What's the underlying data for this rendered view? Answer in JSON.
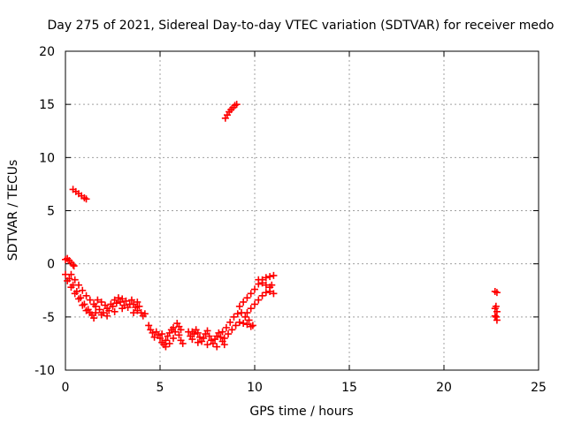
{
  "chart_data": {
    "type": "scatter",
    "title": "Day 275 of 2021, Sidereal Day-to-day VTEC variation (SDTVAR) for receiver medo",
    "xlabel": "GPS time / hours",
    "ylabel": "SDTVAR / TECUs",
    "xlim": [
      0,
      25
    ],
    "ylim": [
      -10,
      20
    ],
    "xticks": [
      "0",
      "5",
      "10",
      "15",
      "20",
      "25"
    ],
    "yticks": [
      "-10",
      "-5",
      "0",
      "5",
      "10",
      "15",
      "20"
    ],
    "grid": true,
    "marker": "+",
    "color": "#ff0000",
    "series": [
      {
        "name": "cluster_high_8h",
        "points": [
          [
            8.45,
            13.7
          ],
          [
            8.55,
            14.0
          ],
          [
            8.65,
            14.3
          ],
          [
            8.75,
            14.5
          ],
          [
            8.85,
            14.7
          ],
          [
            8.95,
            14.9
          ],
          [
            9.05,
            15.0
          ]
        ]
      },
      {
        "name": "cluster_early_7",
        "points": [
          [
            0.4,
            7.0
          ],
          [
            0.55,
            6.8
          ],
          [
            0.7,
            6.6
          ],
          [
            0.85,
            6.4
          ],
          [
            1.0,
            6.2
          ],
          [
            1.1,
            6.1
          ]
        ]
      },
      {
        "name": "cluster_start_0",
        "points": [
          [
            0.0,
            0.4
          ],
          [
            0.1,
            0.5
          ],
          [
            0.2,
            0.3
          ],
          [
            0.3,
            0.1
          ],
          [
            0.4,
            -0.1
          ],
          [
            0.45,
            -0.2
          ]
        ]
      },
      {
        "name": "arc_a",
        "points": [
          [
            0.0,
            -1.0
          ],
          [
            0.2,
            -1.4
          ],
          [
            0.4,
            -2.0
          ],
          [
            0.6,
            -2.6
          ],
          [
            0.8,
            -3.2
          ],
          [
            1.0,
            -3.8
          ],
          [
            1.2,
            -4.3
          ],
          [
            1.4,
            -4.8
          ],
          [
            1.5,
            -5.1
          ]
        ]
      },
      {
        "name": "arc_b",
        "points": [
          [
            0.1,
            -1.6
          ],
          [
            0.3,
            -2.2
          ],
          [
            0.5,
            -2.8
          ],
          [
            0.7,
            -3.3
          ],
          [
            0.9,
            -3.9
          ],
          [
            1.1,
            -4.4
          ],
          [
            1.3,
            -4.6
          ]
        ]
      },
      {
        "name": "arc_c",
        "points": [
          [
            0.3,
            -1.0
          ],
          [
            0.5,
            -1.5
          ],
          [
            0.7,
            -2.0
          ],
          [
            0.9,
            -2.5
          ],
          [
            1.1,
            -3.0
          ],
          [
            1.3,
            -3.4
          ],
          [
            1.5,
            -3.8
          ]
        ]
      },
      {
        "name": "early_band",
        "points": [
          [
            1.6,
            -4.0
          ],
          [
            1.8,
            -4.3
          ],
          [
            2.0,
            -4.6
          ],
          [
            2.2,
            -4.2
          ],
          [
            2.4,
            -3.8
          ],
          [
            2.6,
            -3.4
          ],
          [
            2.8,
            -3.2
          ],
          [
            3.0,
            -3.3
          ],
          [
            3.2,
            -3.5
          ],
          [
            3.4,
            -3.8
          ],
          [
            1.7,
            -3.4
          ],
          [
            1.9,
            -3.6
          ],
          [
            2.1,
            -3.9
          ],
          [
            2.3,
            -4.4
          ],
          [
            2.5,
            -4.0
          ],
          [
            2.7,
            -3.7
          ],
          [
            2.9,
            -3.6
          ],
          [
            3.1,
            -3.9
          ],
          [
            3.3,
            -4.1
          ],
          [
            1.6,
            -4.6
          ],
          [
            1.9,
            -4.8
          ],
          [
            2.2,
            -4.9
          ],
          [
            2.6,
            -4.5
          ],
          [
            3.0,
            -4.2
          ]
        ]
      },
      {
        "name": "group_3_5h",
        "points": [
          [
            3.5,
            -3.4
          ],
          [
            3.6,
            -3.8
          ],
          [
            3.7,
            -4.1
          ],
          [
            3.8,
            -4.4
          ],
          [
            3.9,
            -4.0
          ],
          [
            4.0,
            -4.6
          ],
          [
            4.1,
            -4.9
          ],
          [
            3.6,
            -4.6
          ],
          [
            3.8,
            -3.6
          ]
        ]
      },
      {
        "name": "isolated_4_2",
        "points": [
          [
            4.2,
            -4.7
          ]
        ]
      },
      {
        "name": "group_4_5h",
        "points": [
          [
            4.4,
            -5.8
          ],
          [
            4.5,
            -6.2
          ],
          [
            4.6,
            -6.5
          ],
          [
            4.7,
            -6.9
          ],
          [
            4.8,
            -6.4
          ],
          [
            4.9,
            -6.7
          ]
        ]
      },
      {
        "name": "group_5h",
        "points": [
          [
            5.0,
            -7.0
          ],
          [
            5.1,
            -7.4
          ],
          [
            5.2,
            -7.6
          ],
          [
            5.3,
            -7.2
          ],
          [
            5.4,
            -6.8
          ],
          [
            5.5,
            -6.5
          ],
          [
            5.6,
            -6.2
          ],
          [
            5.7,
            -6.0
          ],
          [
            5.8,
            -6.4
          ],
          [
            5.1,
            -6.6
          ],
          [
            5.3,
            -7.8
          ],
          [
            5.5,
            -7.5
          ],
          [
            5.7,
            -7.0
          ]
        ]
      },
      {
        "name": "group_6h",
        "points": [
          [
            5.9,
            -5.6
          ],
          [
            6.0,
            -5.9
          ],
          [
            6.1,
            -6.2
          ],
          [
            6.0,
            -6.7
          ],
          [
            6.1,
            -7.2
          ],
          [
            6.2,
            -7.5
          ]
        ]
      },
      {
        "name": "group_6_5h",
        "points": [
          [
            6.5,
            -6.4
          ],
          [
            6.6,
            -6.8
          ],
          [
            6.7,
            -7.1
          ],
          [
            6.8,
            -6.6
          ],
          [
            6.9,
            -6.2
          ],
          [
            7.0,
            -6.5
          ],
          [
            7.1,
            -6.9
          ],
          [
            7.2,
            -7.3
          ],
          [
            7.3,
            -7.0
          ],
          [
            7.4,
            -6.6
          ],
          [
            7.5,
            -6.3
          ],
          [
            7.6,
            -6.8
          ],
          [
            7.7,
            -7.2
          ],
          [
            7.8,
            -7.5
          ],
          [
            7.9,
            -7.1
          ],
          [
            8.0,
            -6.8
          ],
          [
            8.1,
            -6.5
          ],
          [
            8.2,
            -6.9
          ],
          [
            8.3,
            -7.3
          ],
          [
            8.4,
            -7.6
          ],
          [
            6.7,
            -6.4
          ],
          [
            7.0,
            -7.4
          ],
          [
            7.5,
            -7.6
          ],
          [
            8.0,
            -7.8
          ]
        ]
      },
      {
        "name": "rising_a",
        "points": [
          [
            8.3,
            -6.4
          ],
          [
            8.5,
            -6.0
          ],
          [
            8.7,
            -5.5
          ],
          [
            8.9,
            -5.0
          ],
          [
            9.1,
            -4.7
          ],
          [
            9.3,
            -4.6
          ],
          [
            9.5,
            -5.0
          ],
          [
            9.7,
            -5.3
          ],
          [
            9.9,
            -5.8
          ]
        ]
      },
      {
        "name": "rising_b",
        "points": [
          [
            8.4,
            -7.0
          ],
          [
            8.6,
            -6.6
          ],
          [
            8.8,
            -6.2
          ],
          [
            9.0,
            -5.8
          ],
          [
            9.2,
            -5.5
          ],
          [
            9.4,
            -5.6
          ],
          [
            9.6,
            -5.7
          ],
          [
            9.8,
            -5.9
          ]
        ]
      },
      {
        "name": "rising_c",
        "points": [
          [
            9.2,
            -4.0
          ],
          [
            9.4,
            -3.6
          ],
          [
            9.6,
            -3.2
          ],
          [
            9.8,
            -2.8
          ],
          [
            10.0,
            -2.4
          ],
          [
            10.2,
            -1.9
          ],
          [
            10.4,
            -1.5
          ],
          [
            10.6,
            -1.3
          ],
          [
            10.8,
            -1.2
          ],
          [
            11.0,
            -1.1
          ]
        ]
      },
      {
        "name": "rising_d",
        "points": [
          [
            9.6,
            -4.6
          ],
          [
            9.8,
            -4.2
          ],
          [
            10.0,
            -3.8
          ],
          [
            10.2,
            -3.4
          ],
          [
            10.4,
            -3.0
          ],
          [
            10.6,
            -2.7
          ],
          [
            10.8,
            -2.6
          ],
          [
            11.0,
            -2.8
          ]
        ]
      },
      {
        "name": "rising_e",
        "points": [
          [
            10.2,
            -1.5
          ],
          [
            10.4,
            -1.8
          ],
          [
            10.6,
            -2.0
          ],
          [
            10.8,
            -2.2
          ],
          [
            10.9,
            -2.0
          ]
        ]
      },
      {
        "name": "cluster_22_8h",
        "points": [
          [
            22.7,
            -2.6
          ],
          [
            22.8,
            -2.7
          ],
          [
            22.7,
            -4.2
          ],
          [
            22.8,
            -4.5
          ],
          [
            22.7,
            -4.9
          ],
          [
            22.8,
            -5.3
          ],
          [
            22.75,
            -4.0
          ],
          [
            22.75,
            -5.0
          ]
        ]
      }
    ]
  }
}
